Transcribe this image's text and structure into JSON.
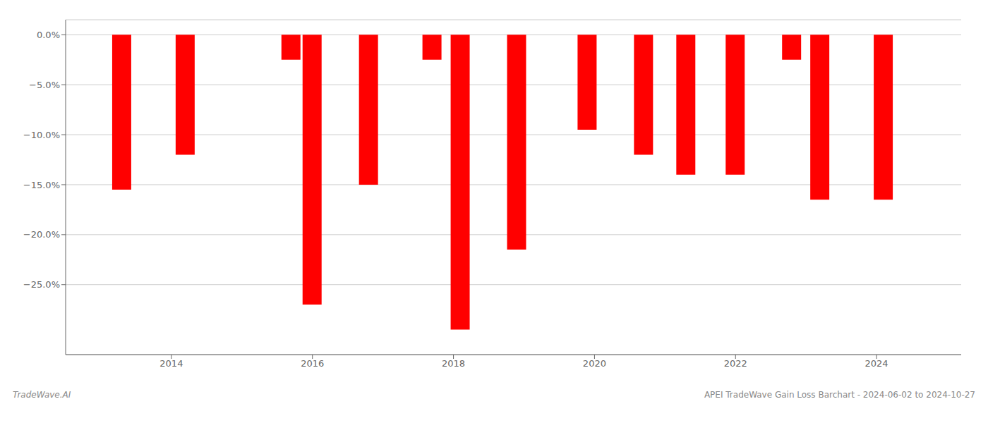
{
  "chart_data": {
    "type": "bar",
    "x": [
      2013.3,
      2014.2,
      2015.7,
      2016.0,
      2016.8,
      2017.7,
      2018.1,
      2018.9,
      2019.9,
      2020.7,
      2021.3,
      2022.0,
      2022.8,
      2023.2,
      2024.1
    ],
    "values": [
      -15.5,
      -12.0,
      -2.5,
      -27.0,
      -15.0,
      -2.5,
      -29.5,
      -21.5,
      -9.5,
      -12.0,
      -14.0,
      -14.0,
      -2.5,
      -16.5,
      -16.5
    ],
    "color": "#ff0000",
    "xlim": [
      2012.5,
      2025.2
    ],
    "xticks": [
      2014,
      2016,
      2018,
      2020,
      2022,
      2024
    ],
    "ylim": [
      -32,
      1.5
    ],
    "yticks": [
      {
        "value": 0.0,
        "label": "0.0%"
      },
      {
        "value": -5.0,
        "label": "−5.0%"
      },
      {
        "value": -10.0,
        "label": "−10.0%"
      },
      {
        "value": -15.0,
        "label": "−15.0%"
      },
      {
        "value": -20.0,
        "label": "−20.0%"
      },
      {
        "value": -25.0,
        "label": "−25.0%"
      }
    ],
    "grid": true,
    "annotations": [
      "TradeWave.AI",
      "APEI TradeWave Gain Loss Barchart - 2024-06-02 to 2024-10-27"
    ]
  }
}
